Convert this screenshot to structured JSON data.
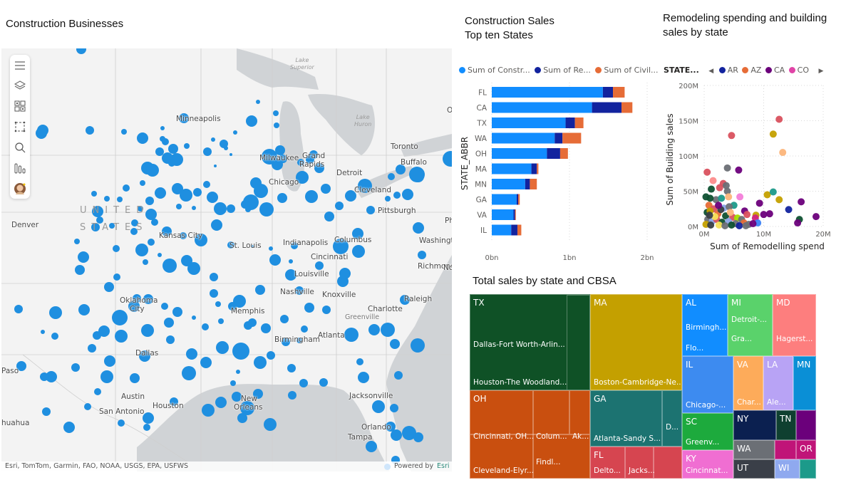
{
  "map_panel": {
    "title": "Construction Businesses",
    "country_label_1": "UNITED",
    "country_label_2": "STATES",
    "lakes": [
      {
        "line1": "Lake",
        "line2": "Superior"
      },
      {
        "line1": "Lake",
        "line2": "Huron"
      }
    ],
    "cities": [
      "Minneapolis",
      "Milwaukee",
      "Grand",
      "Rapids",
      "Detroit",
      "Toronto",
      "Buffalo",
      "Chicago",
      "Cleveland",
      "Pittsburgh",
      "Denver",
      "Kansas City",
      "Indianapolis",
      "Columbus",
      "Cincinnati",
      "St. Louis",
      "Louisville",
      "Washingt",
      "Richmond",
      "Nashville",
      "Knoxville",
      "Raleigh",
      "Oklahoma",
      "City",
      "Memphis",
      "Charlotte",
      "Greenville",
      "Atlanta",
      "Birmingham",
      "Dallas",
      "Austin",
      "Houston",
      "San Antonio",
      "New",
      "Orleans",
      "Jacksonville",
      "Orlando",
      "Tampa",
      "Paso",
      "huahua",
      "O",
      "Ph",
      "Nor"
    ],
    "toolbar": {
      "items": [
        "menu-icon",
        "layers-icon",
        "qr-grid-icon",
        "select-rectangle-icon",
        "search-icon",
        "bar-chart-icon",
        "avatar"
      ]
    },
    "attribution": "Esri, TomTom, Garmin, FAO, NOAA, USGS, EPA, USFWS",
    "powered_by": "Powered by",
    "esri": "Esri",
    "colors": {
      "bubble": "#1f8fe0",
      "land": "#f3f3f3",
      "water": "#d0d3d6"
    }
  },
  "bar_panel": {
    "title_line1": "Construction Sales",
    "title_line2": "Top ten States",
    "legend": [
      {
        "label": "Sum of Constr...",
        "color": "#118dff"
      },
      {
        "label": "Sum of Re...",
        "color": "#12239e"
      },
      {
        "label": "Sum of Civil...",
        "color": "#e66c37"
      }
    ]
  },
  "scatter_panel": {
    "title_line1": "Remodeling spending and building",
    "title_line2": "sales by state",
    "legend_title": "STATE...",
    "legend": [
      {
        "label": "AR",
        "color": "#12239e"
      },
      {
        "label": "AZ",
        "color": "#e66c37"
      },
      {
        "label": "CA",
        "color": "#6b007b"
      },
      {
        "label": "CO",
        "color": "#e044a7"
      }
    ],
    "prev_icon": "caret-left-icon",
    "next_icon": "caret-right-icon"
  },
  "treemap_panel": {
    "title": "Total sales by state and CBSA"
  },
  "chart_data": [
    {
      "type": "bar",
      "orientation": "horizontal",
      "stacked": true,
      "title": "Construction Sales Top ten States",
      "categories": [
        "FL",
        "CA",
        "TX",
        "WA",
        "OH",
        "MA",
        "MN",
        "GA",
        "VA",
        "IL"
      ],
      "series": [
        {
          "name": "Sum of Constr...",
          "color": "#118dff",
          "values": [
            1.43,
            1.29,
            0.95,
            0.81,
            0.71,
            0.51,
            0.43,
            0.32,
            0.28,
            0.25
          ]
        },
        {
          "name": "Sum of Re...",
          "color": "#12239e",
          "values": [
            0.13,
            0.38,
            0.12,
            0.1,
            0.17,
            0.07,
            0.06,
            0.02,
            0.02,
            0.08
          ]
        },
        {
          "name": "Sum of Civil...",
          "color": "#e66c37",
          "values": [
            0.15,
            0.14,
            0.11,
            0.24,
            0.1,
            0.02,
            0.09,
            0.02,
            0.01,
            0.05
          ]
        }
      ],
      "xlabel": "",
      "ylabel": "STATE_ABBR",
      "xticks": [
        "0bn",
        "1bn",
        "2bn"
      ],
      "xlim": [
        0,
        2
      ],
      "grid": true,
      "legend_position": "top"
    },
    {
      "type": "scatter",
      "title": "Remodeling spending and building sales by state",
      "xlabel": "Sum of Remodelling spend",
      "ylabel": "Sum of Building sales",
      "xticks": [
        "0M",
        "10M",
        "20M"
      ],
      "yticks": [
        "0M",
        "50M",
        "100M",
        "150M",
        "200M"
      ],
      "xlim": [
        0,
        20
      ],
      "ylim": [
        0,
        200
      ],
      "grid": true,
      "legend_position": "top",
      "points": [
        {
          "x": 12.6,
          "y": 152,
          "color": "#d9515e"
        },
        {
          "x": 4.6,
          "y": 129,
          "color": "#d9515e"
        },
        {
          "x": 11.6,
          "y": 131,
          "color": "#c4a000"
        },
        {
          "x": 13.2,
          "y": 105,
          "color": "#fcb57a"
        },
        {
          "x": 3.9,
          "y": 83,
          "color": "#6b6f75"
        },
        {
          "x": 5.8,
          "y": 80,
          "color": "#6b007b"
        },
        {
          "x": 0.5,
          "y": 77,
          "color": "#d9515e"
        },
        {
          "x": 1.5,
          "y": 65,
          "color": "#fd8c8c"
        },
        {
          "x": 3.2,
          "y": 61,
          "color": "#d9515e"
        },
        {
          "x": 3.7,
          "y": 58,
          "color": "#6b6f75"
        },
        {
          "x": 1.2,
          "y": 53,
          "color": "#0f5132"
        },
        {
          "x": 2.6,
          "y": 55,
          "color": "#d9515e"
        },
        {
          "x": 3.9,
          "y": 50,
          "color": "#6b6f75"
        },
        {
          "x": 0.3,
          "y": 42,
          "color": "#0f5132"
        },
        {
          "x": 4.1,
          "y": 42,
          "color": "#fcb57a"
        },
        {
          "x": 6.0,
          "y": 42,
          "color": "#f37ed9"
        },
        {
          "x": 10.6,
          "y": 45,
          "color": "#c4a000"
        },
        {
          "x": 11.6,
          "y": 49,
          "color": "#1c9a8a"
        },
        {
          "x": 12.6,
          "y": 38,
          "color": "#c4a000"
        },
        {
          "x": 16.3,
          "y": 35,
          "color": "#6b007b"
        },
        {
          "x": 9.3,
          "y": 33,
          "color": "#6b007b"
        },
        {
          "x": 14.2,
          "y": 24,
          "color": "#12239e"
        },
        {
          "x": 6.8,
          "y": 22,
          "color": "#6b007b"
        },
        {
          "x": 10.0,
          "y": 17,
          "color": "#6b007b"
        },
        {
          "x": 11.0,
          "y": 18,
          "color": "#6b007b"
        },
        {
          "x": 7.2,
          "y": 17,
          "color": "#d9515e"
        },
        {
          "x": 8.7,
          "y": 16,
          "color": "#c4a000"
        },
        {
          "x": 8.6,
          "y": 12,
          "color": "#d0237f"
        },
        {
          "x": 18.8,
          "y": 14,
          "color": "#6b007b"
        },
        {
          "x": 16.0,
          "y": 10,
          "color": "#0f5132"
        },
        {
          "x": 15.7,
          "y": 5,
          "color": "#6b007b"
        },
        {
          "x": 9.0,
          "y": 5,
          "color": "#3b82f6"
        },
        {
          "x": 5.0,
          "y": 30,
          "color": "#1c9a8a"
        },
        {
          "x": 2.0,
          "y": 38,
          "color": "#6b6f75"
        },
        {
          "x": 1.0,
          "y": 40,
          "color": "#0f5132"
        },
        {
          "x": 2.9,
          "y": 40,
          "color": "#1c9a8a"
        },
        {
          "x": 0.8,
          "y": 30,
          "color": "#e66c37"
        },
        {
          "x": 1.6,
          "y": 25,
          "color": "#d9515e"
        },
        {
          "x": 3.3,
          "y": 26,
          "color": "#8ba3e8"
        },
        {
          "x": 4.2,
          "y": 28,
          "color": "#6b6f75"
        },
        {
          "x": 0.5,
          "y": 20,
          "color": "#0f5132"
        },
        {
          "x": 1.0,
          "y": 22,
          "color": "#c4a000"
        },
        {
          "x": 2.3,
          "y": 18,
          "color": "#e66c37"
        },
        {
          "x": 3.6,
          "y": 15,
          "color": "#0f5132"
        },
        {
          "x": 4.8,
          "y": 13,
          "color": "#d9515e"
        },
        {
          "x": 5.6,
          "y": 12,
          "color": "#a4dd00"
        },
        {
          "x": 6.3,
          "y": 10,
          "color": "#6b6f75"
        },
        {
          "x": 0.6,
          "y": 10,
          "color": "#6b6f75"
        },
        {
          "x": 1.4,
          "y": 8,
          "color": "#8ba3e8"
        },
        {
          "x": 2.1,
          "y": 10,
          "color": "#d9515e"
        },
        {
          "x": 3.0,
          "y": 6,
          "color": "#0f5132"
        },
        {
          "x": 4.1,
          "y": 7,
          "color": "#8ba3e8"
        },
        {
          "x": 5.3,
          "y": 4,
          "color": "#6b6f75"
        },
        {
          "x": 6.7,
          "y": 5,
          "color": "#e66c37"
        },
        {
          "x": 7.5,
          "y": 3,
          "color": "#6b6f75"
        },
        {
          "x": 8.2,
          "y": 4,
          "color": "#6b007b"
        },
        {
          "x": 0.3,
          "y": 3,
          "color": "#c4a000"
        },
        {
          "x": 1.1,
          "y": 2,
          "color": "#3a3f45"
        },
        {
          "x": 2.5,
          "y": 2,
          "color": "#f7e15a"
        },
        {
          "x": 3.5,
          "y": 1,
          "color": "#6b6f75"
        },
        {
          "x": 4.6,
          "y": 2,
          "color": "#0f5132"
        },
        {
          "x": 5.9,
          "y": 1,
          "color": "#12239e"
        },
        {
          "x": 7.0,
          "y": 1,
          "color": "#6b6f75"
        },
        {
          "x": 2.8,
          "y": 24,
          "color": "#3a3f45"
        },
        {
          "x": 1.8,
          "y": 14,
          "color": "#f7e15a"
        },
        {
          "x": 0.9,
          "y": 16,
          "color": "#3a3f45"
        },
        {
          "x": 2.4,
          "y": 30,
          "color": "#6b007b"
        },
        {
          "x": 4.4,
          "y": 20,
          "color": "#fcb57a"
        }
      ]
    },
    {
      "type": "treemap",
      "title": "Total sales by state and CBSA",
      "nodes": [
        {
          "state": "TX",
          "color": "#0f5126",
          "children": [
            "Dallas-Fort Worth-Arlin...",
            "Houston-The Woodland..."
          ]
        },
        {
          "state": "MA",
          "color": "#c4a000",
          "children": [
            "Boston-Cambridge-Ne..."
          ]
        },
        {
          "state": "OH",
          "color": "#c94f0f",
          "children": [
            "Cincinnati, OH...",
            "Colum...",
            "Ak...",
            "Cleveland-Elyr...",
            "Findl..."
          ]
        },
        {
          "state": "GA",
          "color": "#1c7371",
          "children": [
            "Atlanta-Sandy S...",
            "D..."
          ]
        },
        {
          "state": "FL",
          "color": "#d64550",
          "children": [
            "Delto...",
            "Jacks..."
          ]
        },
        {
          "state": "AL",
          "color": "#118dff",
          "children": [
            "Birmingh...",
            "Flo..."
          ]
        },
        {
          "state": "MI",
          "color": "#5ad26b",
          "children": [
            "Detroit-...",
            "Gra..."
          ]
        },
        {
          "state": "MD",
          "color": "#fd7e7e",
          "children": [
            "Hagerst..."
          ]
        },
        {
          "state": "IL",
          "color": "#3d8bf0",
          "children": [
            "Chicago-..."
          ]
        },
        {
          "state": "VA",
          "color": "#fdab5a",
          "children": [
            "Char..."
          ]
        },
        {
          "state": "LA",
          "color": "#b8a3f5",
          "children": [
            "Ale..."
          ]
        },
        {
          "state": "MN",
          "color": "#0a8fd6",
          "children": []
        },
        {
          "state": "SC",
          "color": "#1daa3d",
          "children": [
            "Greenv..."
          ]
        },
        {
          "state": "NY",
          "color": "#0b2050",
          "children": []
        },
        {
          "state": "TN",
          "color": "#0f4030",
          "children": []
        },
        {
          "state": "KY",
          "color": "#f06ed2",
          "children": [
            "Cincinnat..."
          ]
        },
        {
          "state": "WA",
          "color": "#6b6f75",
          "children": []
        },
        {
          "state": "OR",
          "color": "#c01478",
          "children": []
        },
        {
          "state": "UT",
          "color": "#3a3f48",
          "children": []
        },
        {
          "state": "WI",
          "color": "#8fa9ef",
          "children": []
        }
      ]
    }
  ]
}
